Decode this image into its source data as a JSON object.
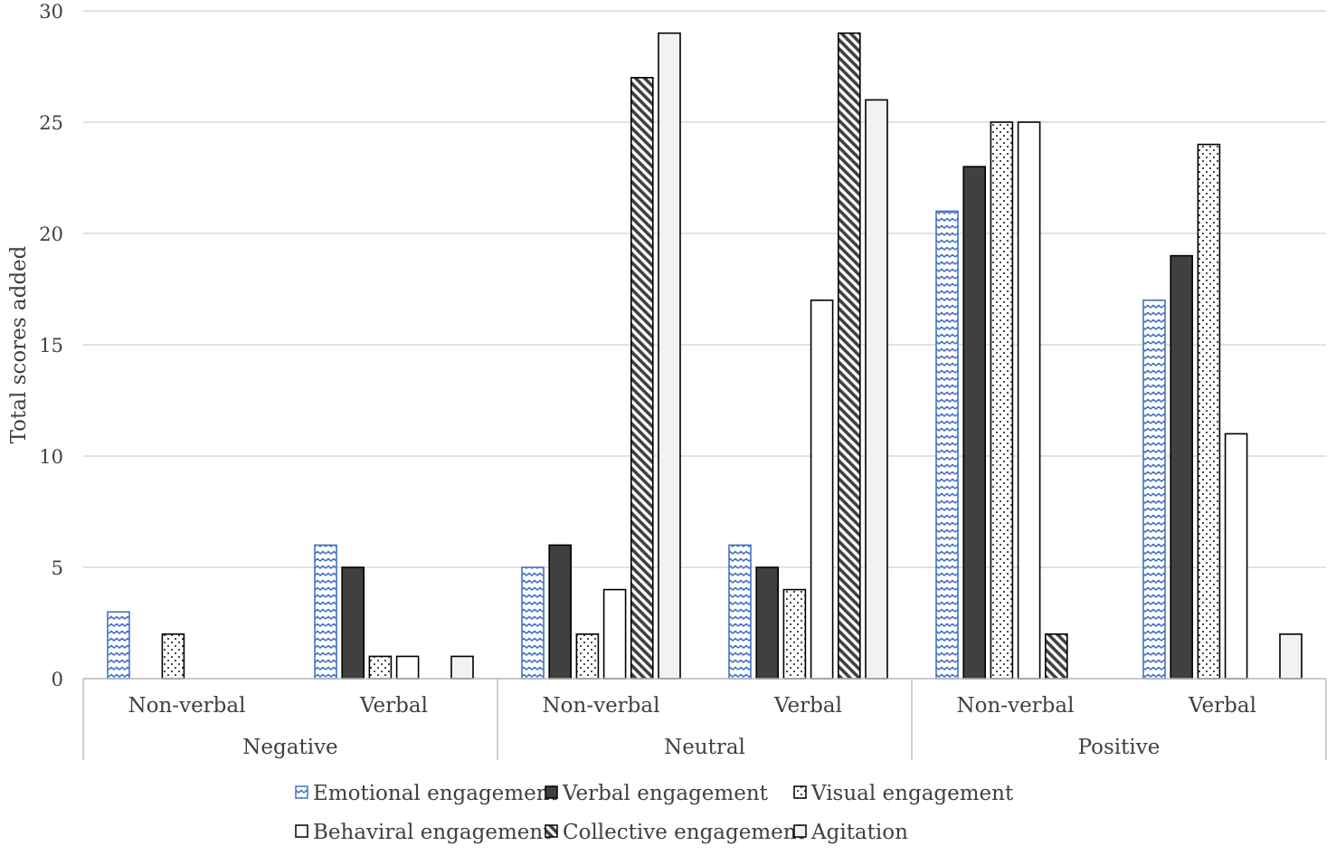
{
  "chart_data": {
    "type": "bar",
    "title": "",
    "xlabel": "",
    "ylabel": "Total scores added",
    "ylim": [
      0,
      30
    ],
    "yticks": [
      0,
      5,
      10,
      15,
      20,
      25,
      30
    ],
    "grid": true,
    "legend_position": "bottom",
    "groups": [
      {
        "label": "Negative",
        "categories": [
          "Non-verbal",
          "Verbal"
        ]
      },
      {
        "label": "Neutral",
        "categories": [
          "Non-verbal",
          "Verbal"
        ]
      },
      {
        "label": "Positive",
        "categories": [
          "Non-verbal",
          "Verbal"
        ]
      }
    ],
    "categories": [
      "Non-verbal",
      "Verbal",
      "Non-verbal",
      "Verbal",
      "Non-verbal",
      "Verbal"
    ],
    "series": [
      {
        "name": "Emotional engagement",
        "pattern": "wave",
        "color": "#4472c4",
        "values": [
          3,
          6,
          5,
          6,
          21,
          17
        ]
      },
      {
        "name": "Verbal engagement",
        "pattern": "solid",
        "color": "#404040",
        "values": [
          0,
          5,
          6,
          5,
          23,
          19
        ]
      },
      {
        "name": "Visual engagement",
        "pattern": "dots",
        "color": "#000000",
        "values": [
          2,
          1,
          2,
          4,
          25,
          24
        ]
      },
      {
        "name": "Behaviral engagement",
        "pattern": "white",
        "color": "#000000",
        "values": [
          0,
          1,
          4,
          17,
          25,
          11
        ]
      },
      {
        "name": "Collective engagement",
        "pattern": "diagonal",
        "color": "#404040",
        "values": [
          0,
          0,
          27,
          29,
          2,
          0
        ]
      },
      {
        "name": "Agitation",
        "pattern": "light",
        "color": "#f2f2f2",
        "values": [
          0,
          1,
          29,
          26,
          0,
          2
        ]
      }
    ]
  }
}
